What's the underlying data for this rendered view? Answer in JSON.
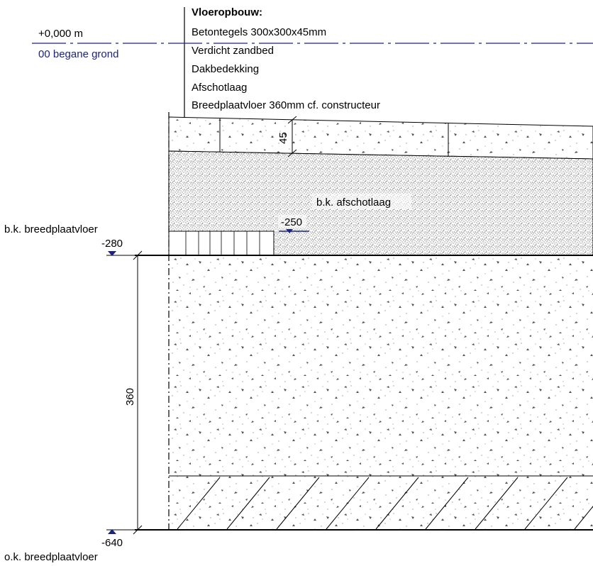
{
  "legend": {
    "heading": "Vloeropbouw:",
    "lines": [
      "Betontegels 300x300x45mm",
      "Verdicht zandbed",
      "Dakbedekking",
      "Afschotlaag",
      "Breedplaatvloer 360mm cf. constructeur"
    ]
  },
  "levels": {
    "ground_value": "+0,000 m",
    "ground_name": "00 begane grond",
    "top_slab_label": "b.k. breedplaatvloer",
    "top_slab_value": "-280",
    "bottom_slab_value": "-640",
    "bottom_slab_label": "o.k. breedplaatvloer",
    "screed_value": "-250"
  },
  "labels": {
    "screed_layer": "b.k. afschotlaag"
  },
  "dimensions": {
    "tile_thickness": "45",
    "slab_thickness": "360"
  },
  "colors": {
    "level_line": "#1a237e",
    "ink": "#000000"
  }
}
